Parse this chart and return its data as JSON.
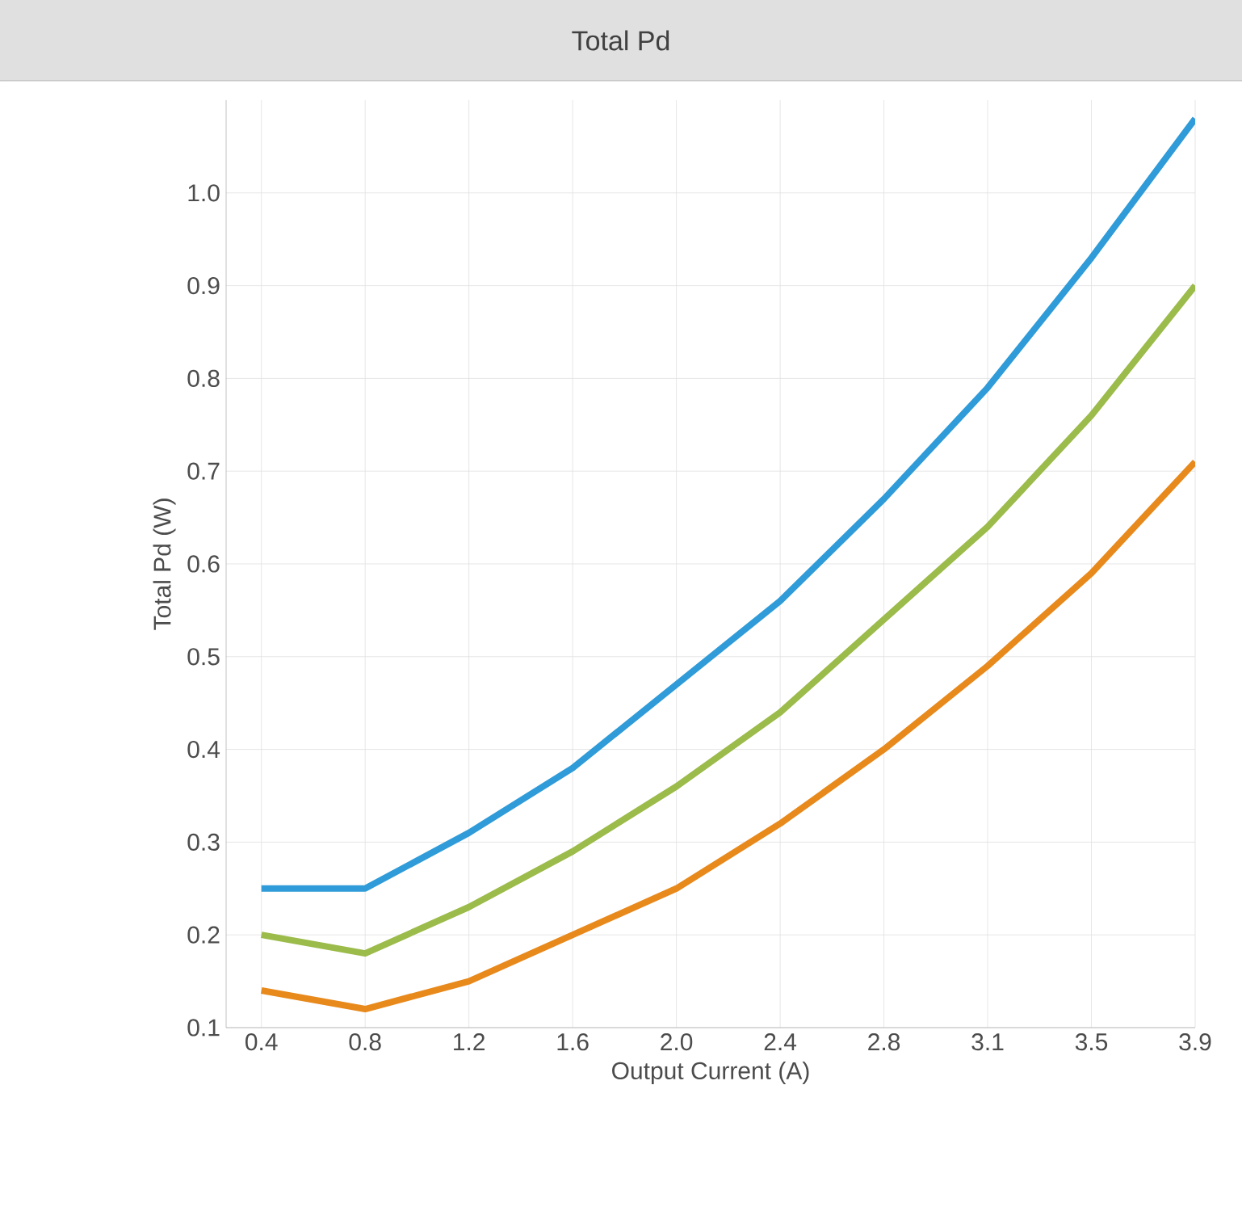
{
  "chart_data": {
    "type": "line",
    "title": "Total Pd",
    "xlabel": "Output Current (A)",
    "ylabel": "Total Pd (W)",
    "categories": [
      "0.4",
      "0.8",
      "1.2",
      "1.6",
      "2.0",
      "2.4",
      "2.8",
      "3.1",
      "3.5",
      "3.9"
    ],
    "series": [
      {
        "color": "#2f9bd8",
        "values": [
          0.25,
          0.25,
          0.31,
          0.38,
          0.47,
          0.56,
          0.67,
          0.79,
          0.93,
          1.08
        ]
      },
      {
        "color": "#9bbb4a",
        "values": [
          0.2,
          0.18,
          0.23,
          0.29,
          0.36,
          0.44,
          0.54,
          0.64,
          0.76,
          0.9
        ]
      },
      {
        "color": "#e8891c",
        "values": [
          0.14,
          0.12,
          0.15,
          0.2,
          0.25,
          0.32,
          0.4,
          0.49,
          0.59,
          0.71
        ]
      }
    ],
    "ylim": [
      0.1,
      1.1
    ],
    "yticks": [
      0.1,
      0.2,
      0.3,
      0.4,
      0.5,
      0.6,
      0.7,
      0.8,
      0.9,
      {
        "value": 1.0,
        "label": "1.0"
      }
    ],
    "grid": true,
    "marker": "none",
    "line_style": "solid"
  }
}
